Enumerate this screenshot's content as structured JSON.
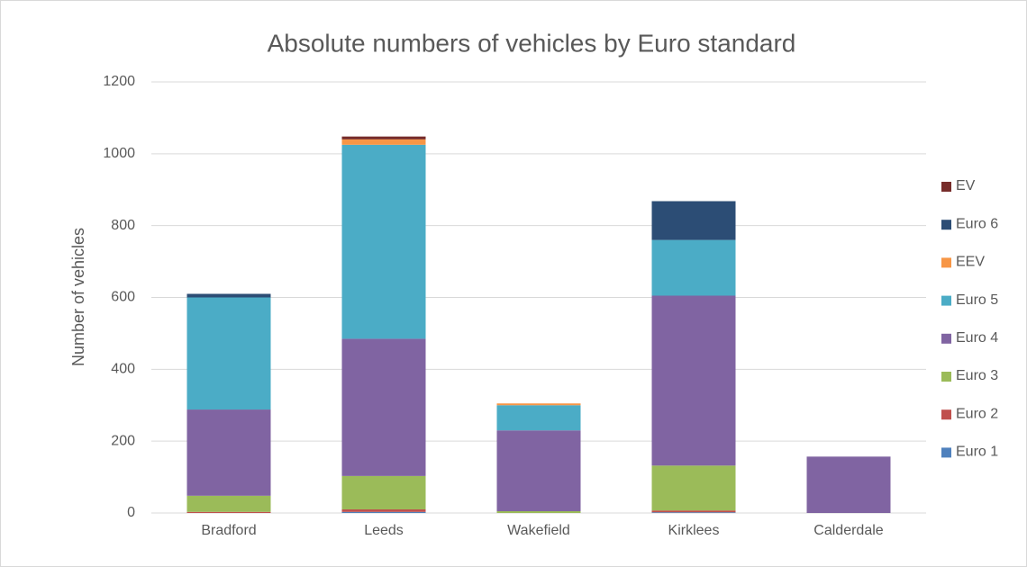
{
  "chart_data": {
    "type": "bar",
    "stacked": true,
    "title": "Absolute numbers of vehicles by Euro standard",
    "y_label": "Number of vehicles",
    "categories": [
      "Bradford",
      "Leeds",
      "Wakefield",
      "Kirklees",
      "Calderdale"
    ],
    "series": [
      {
        "name": "Euro 1",
        "color": "#4f81bd",
        "values": [
          0,
          3,
          0,
          2,
          0
        ]
      },
      {
        "name": "Euro 2",
        "color": "#c0504d",
        "values": [
          3,
          7,
          0,
          5,
          0
        ]
      },
      {
        "name": "Euro 3",
        "color": "#9bbb59",
        "values": [
          45,
          93,
          5,
          125,
          0
        ]
      },
      {
        "name": "Euro 4",
        "color": "#8064a2",
        "values": [
          240,
          382,
          225,
          473,
          157
        ]
      },
      {
        "name": "Euro 5",
        "color": "#4bacc6",
        "values": [
          312,
          540,
          70,
          155,
          0
        ]
      },
      {
        "name": "EEV",
        "color": "#f79646",
        "values": [
          0,
          15,
          5,
          0,
          0
        ]
      },
      {
        "name": "Euro 6",
        "color": "#2c4d75",
        "values": [
          10,
          0,
          0,
          108,
          0
        ]
      },
      {
        "name": "EV",
        "color": "#772c2a",
        "values": [
          0,
          8,
          0,
          0,
          0
        ]
      }
    ],
    "ylim": [
      0,
      1200
    ],
    "yticks": [
      0,
      200,
      400,
      600,
      800,
      1000,
      1200
    ],
    "grid": true,
    "legend": "right"
  }
}
